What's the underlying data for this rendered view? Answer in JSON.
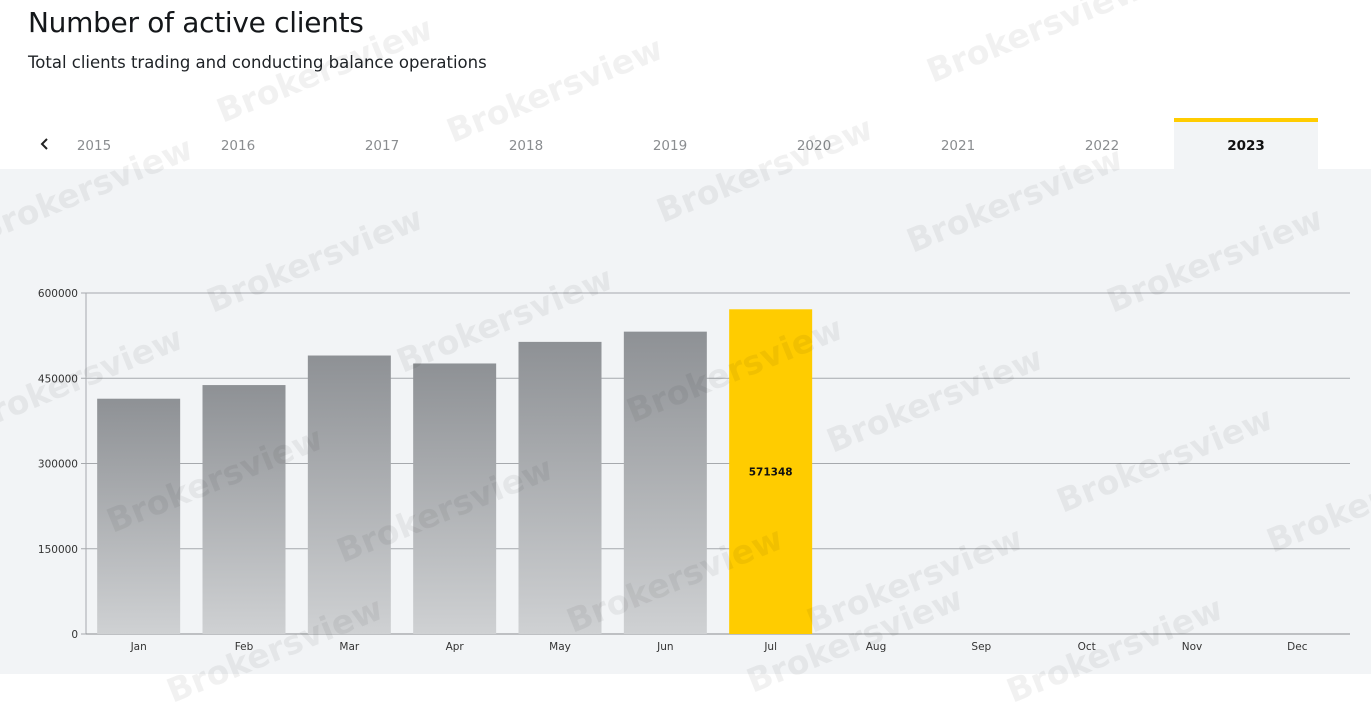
{
  "header": {
    "title": "Number of active clients",
    "subtitle": "Total clients trading and conducting balance operations"
  },
  "tabs": {
    "prev_icon": "chevron-left-icon",
    "years": [
      "2015",
      "2016",
      "2017",
      "2018",
      "2019",
      "2020",
      "2021",
      "2022",
      "2023"
    ],
    "active": "2023"
  },
  "watermark": "Brokersview",
  "colors": {
    "accent": "#ffcc00",
    "bar_top": "#8e9195",
    "bar_bottom": "#cfd1d3",
    "panel_bg": "#f2f4f6",
    "grid": "#a6a9ad"
  },
  "chart_data": {
    "type": "bar",
    "categories": [
      "Jan",
      "Feb",
      "Mar",
      "Apr",
      "May",
      "Jun",
      "Jul",
      "Aug",
      "Sep",
      "Oct",
      "Nov",
      "Dec"
    ],
    "values": [
      414000,
      438000,
      490000,
      476000,
      514000,
      532000,
      571348,
      null,
      null,
      null,
      null,
      null
    ],
    "highlight": "Jul",
    "data_labels": {
      "Jul": "571348"
    },
    "yticks": [
      "0",
      "150000",
      "300000",
      "450000",
      "600000"
    ],
    "ylim": [
      0,
      600000
    ],
    "grid": true
  }
}
